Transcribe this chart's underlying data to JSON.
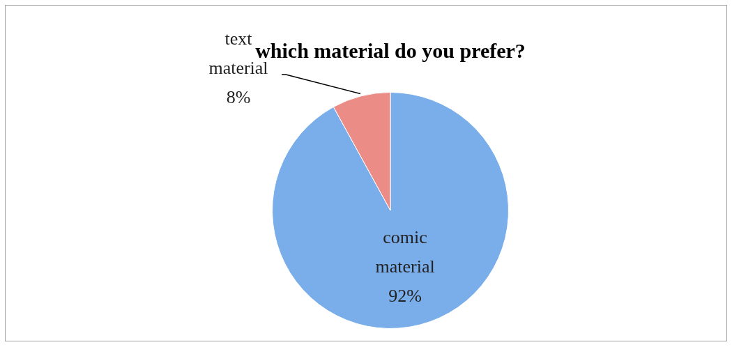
{
  "chart_data": {
    "type": "pie",
    "title": "which material do you prefer?",
    "categories": [
      "comic material",
      "text material"
    ],
    "values": [
      92,
      8
    ],
    "colors": [
      "#7aaeea",
      "#ec8c86"
    ],
    "value_labels": [
      "92%",
      "8%"
    ]
  }
}
